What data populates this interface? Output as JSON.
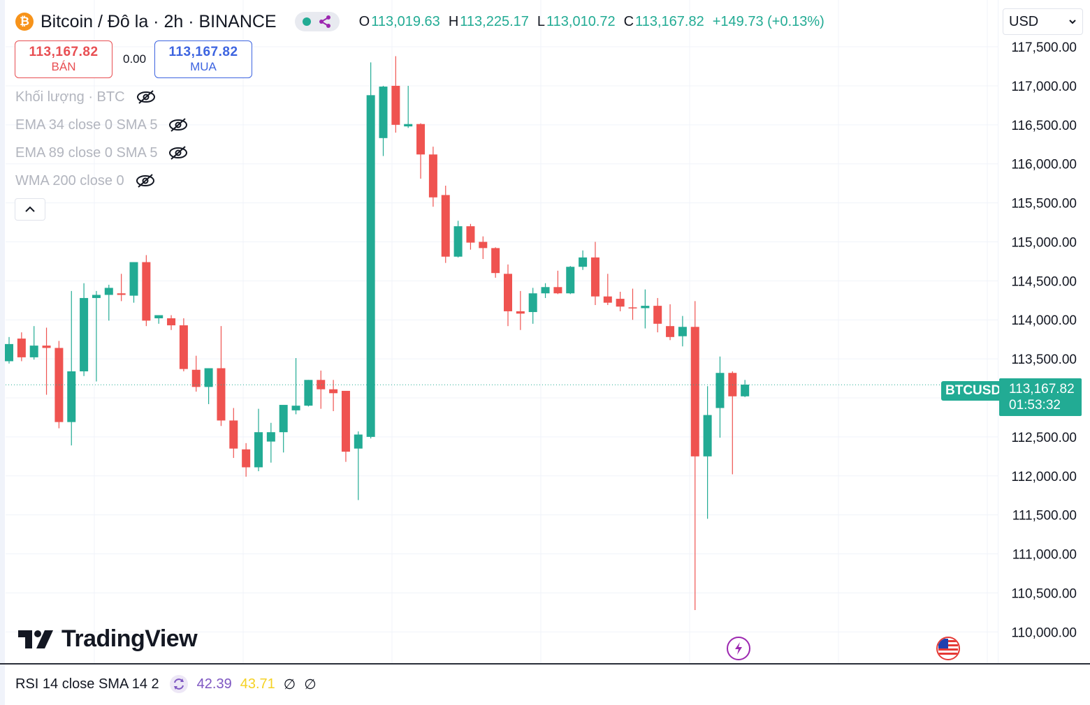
{
  "header": {
    "symbol_title": "Bitcoin / Đô la · 2h · BINANCE",
    "open_label": "O",
    "open": "113,019.63",
    "high_label": "H",
    "high": "113,225.17",
    "low_label": "L",
    "low": "113,010.72",
    "close_label": "C",
    "close": "113,167.82",
    "change": "+149.73 (+0.13%)"
  },
  "trade": {
    "sell_price": "113,167.82",
    "sell_label": "BÁN",
    "spread": "0.00",
    "buy_price": "113,167.82",
    "buy_label": "MUA"
  },
  "indicators": [
    {
      "label": "Khối lượng · BTC"
    },
    {
      "label": "EMA 34 close 0 SMA 5"
    },
    {
      "label": "EMA 89 close 0 SMA 5"
    },
    {
      "label": "WMA 200 close 0"
    }
  ],
  "currency": "USD",
  "price_tag": {
    "symbol": "BTCUSD",
    "price": "113,167.82",
    "countdown": "01:53:32"
  },
  "brand": "TradingView",
  "rsi": {
    "label": "RSI 14 close SMA 14 2",
    "value": "42.39",
    "sma": "43.71",
    "n1": "∅",
    "n2": "∅"
  },
  "colors": {
    "up": "#22ab94",
    "down": "#ef5350",
    "sell": "#e84e52",
    "buy": "#3d64e0",
    "rsi_line": "#7e57c2",
    "rsi_sma": "#f5d224"
  },
  "icons": {
    "status": "share-icon",
    "lightning": "lightning-icon",
    "flag": "us-flag-icon",
    "eye": "eye-off-icon",
    "chevron": "chevron-up-icon"
  },
  "chart_data": {
    "type": "candlestick",
    "title": "Bitcoin / Đô la · 2h · BINANCE",
    "ylim": [
      109600,
      118100
    ],
    "y_ticks": [
      110000,
      110500,
      111000,
      111500,
      112000,
      112500,
      113000,
      113500,
      114000,
      114500,
      115000,
      115500,
      116000,
      116500,
      117000,
      117500
    ],
    "y_tick_labels": [
      "110,000.00",
      "110,500.00",
      "111,000.00",
      "111,500.00",
      "112,000.00",
      "112,500.00",
      "113,000.00",
      "113,500.00",
      "114,000.00",
      "114,500.00",
      "115,000.00",
      "115,500.00",
      "116,000.00",
      "116,500.00",
      "117,000.00",
      "117,500.00"
    ],
    "last_price": 113167.82,
    "grid": true,
    "candles": [
      {
        "o": 113470,
        "h": 113780,
        "l": 113440,
        "c": 113690
      },
      {
        "o": 113760,
        "h": 113840,
        "l": 113470,
        "c": 113520
      },
      {
        "o": 113520,
        "h": 113920,
        "l": 113490,
        "c": 113670
      },
      {
        "o": 113670,
        "h": 113900,
        "l": 113040,
        "c": 113640
      },
      {
        "o": 113640,
        "h": 113730,
        "l": 112610,
        "c": 112690
      },
      {
        "o": 112690,
        "h": 114370,
        "l": 112390,
        "c": 113340
      },
      {
        "o": 113340,
        "h": 114470,
        "l": 113280,
        "c": 114280
      },
      {
        "o": 114280,
        "h": 114370,
        "l": 113210,
        "c": 114320
      },
      {
        "o": 114320,
        "h": 114450,
        "l": 113990,
        "c": 114410
      },
      {
        "o": 114340,
        "h": 114590,
        "l": 114240,
        "c": 114320
      },
      {
        "o": 114310,
        "h": 114740,
        "l": 114220,
        "c": 114740
      },
      {
        "o": 114740,
        "h": 114830,
        "l": 113920,
        "c": 113990
      },
      {
        "o": 114020,
        "h": 114060,
        "l": 113950,
        "c": 114060
      },
      {
        "o": 114020,
        "h": 114060,
        "l": 113870,
        "c": 113930
      },
      {
        "o": 113930,
        "h": 114020,
        "l": 113340,
        "c": 113370
      },
      {
        "o": 113360,
        "h": 113540,
        "l": 113080,
        "c": 113140
      },
      {
        "o": 113140,
        "h": 113380,
        "l": 112920,
        "c": 113380
      },
      {
        "o": 113380,
        "h": 113920,
        "l": 112640,
        "c": 112710
      },
      {
        "o": 112710,
        "h": 112870,
        "l": 112230,
        "c": 112350
      },
      {
        "o": 112340,
        "h": 112420,
        "l": 111990,
        "c": 112110
      },
      {
        "o": 112110,
        "h": 112860,
        "l": 112060,
        "c": 112560
      },
      {
        "o": 112440,
        "h": 112680,
        "l": 112170,
        "c": 112560
      },
      {
        "o": 112560,
        "h": 112900,
        "l": 112300,
        "c": 112910
      },
      {
        "o": 112840,
        "h": 113510,
        "l": 112790,
        "c": 112900
      },
      {
        "o": 112900,
        "h": 113230,
        "l": 112890,
        "c": 113230
      },
      {
        "o": 113230,
        "h": 113350,
        "l": 112860,
        "c": 113110
      },
      {
        "o": 113110,
        "h": 113230,
        "l": 112830,
        "c": 113060
      },
      {
        "o": 113090,
        "h": 113080,
        "l": 112180,
        "c": 112310
      },
      {
        "o": 112350,
        "h": 112570,
        "l": 111690,
        "c": 112530
      },
      {
        "o": 112500,
        "h": 117300,
        "l": 112480,
        "c": 116880
      },
      {
        "o": 116330,
        "h": 117000,
        "l": 116100,
        "c": 116990
      },
      {
        "o": 117000,
        "h": 117380,
        "l": 116400,
        "c": 116500
      },
      {
        "o": 116480,
        "h": 117000,
        "l": 116460,
        "c": 116510
      },
      {
        "o": 116510,
        "h": 116520,
        "l": 115810,
        "c": 116120
      },
      {
        "o": 116120,
        "h": 116220,
        "l": 115450,
        "c": 115570
      },
      {
        "o": 115600,
        "h": 115720,
        "l": 114730,
        "c": 114810
      },
      {
        "o": 114810,
        "h": 115270,
        "l": 114800,
        "c": 115200
      },
      {
        "o": 115200,
        "h": 115230,
        "l": 114900,
        "c": 114990
      },
      {
        "o": 115000,
        "h": 115070,
        "l": 114780,
        "c": 114920
      },
      {
        "o": 114920,
        "h": 114930,
        "l": 114540,
        "c": 114600
      },
      {
        "o": 114590,
        "h": 114710,
        "l": 113920,
        "c": 114110
      },
      {
        "o": 114110,
        "h": 114370,
        "l": 113870,
        "c": 114080
      },
      {
        "o": 114100,
        "h": 114410,
        "l": 113950,
        "c": 114340
      },
      {
        "o": 114340,
        "h": 114470,
        "l": 114280,
        "c": 114420
      },
      {
        "o": 114420,
        "h": 114630,
        "l": 114330,
        "c": 114340
      },
      {
        "o": 114340,
        "h": 114690,
        "l": 114330,
        "c": 114680
      },
      {
        "o": 114680,
        "h": 114890,
        "l": 114640,
        "c": 114800
      },
      {
        "o": 114800,
        "h": 115000,
        "l": 114190,
        "c": 114300
      },
      {
        "o": 114300,
        "h": 114590,
        "l": 114190,
        "c": 114220
      },
      {
        "o": 114270,
        "h": 114360,
        "l": 114110,
        "c": 114170
      },
      {
        "o": 114160,
        "h": 114400,
        "l": 114000,
        "c": 114150
      },
      {
        "o": 114150,
        "h": 114390,
        "l": 113890,
        "c": 114180
      },
      {
        "o": 114180,
        "h": 114280,
        "l": 113840,
        "c": 113950
      },
      {
        "o": 113920,
        "h": 114200,
        "l": 113740,
        "c": 113780
      },
      {
        "o": 113790,
        "h": 114050,
        "l": 113660,
        "c": 113910
      },
      {
        "o": 113910,
        "h": 114240,
        "l": 110280,
        "c": 112250
      },
      {
        "o": 112250,
        "h": 113150,
        "l": 111450,
        "c": 112780
      },
      {
        "o": 112870,
        "h": 113530,
        "l": 112490,
        "c": 113320
      },
      {
        "o": 113320,
        "h": 113340,
        "l": 112020,
        "c": 113020
      },
      {
        "o": 113020,
        "h": 113230,
        "l": 113010,
        "c": 113170
      }
    ]
  }
}
